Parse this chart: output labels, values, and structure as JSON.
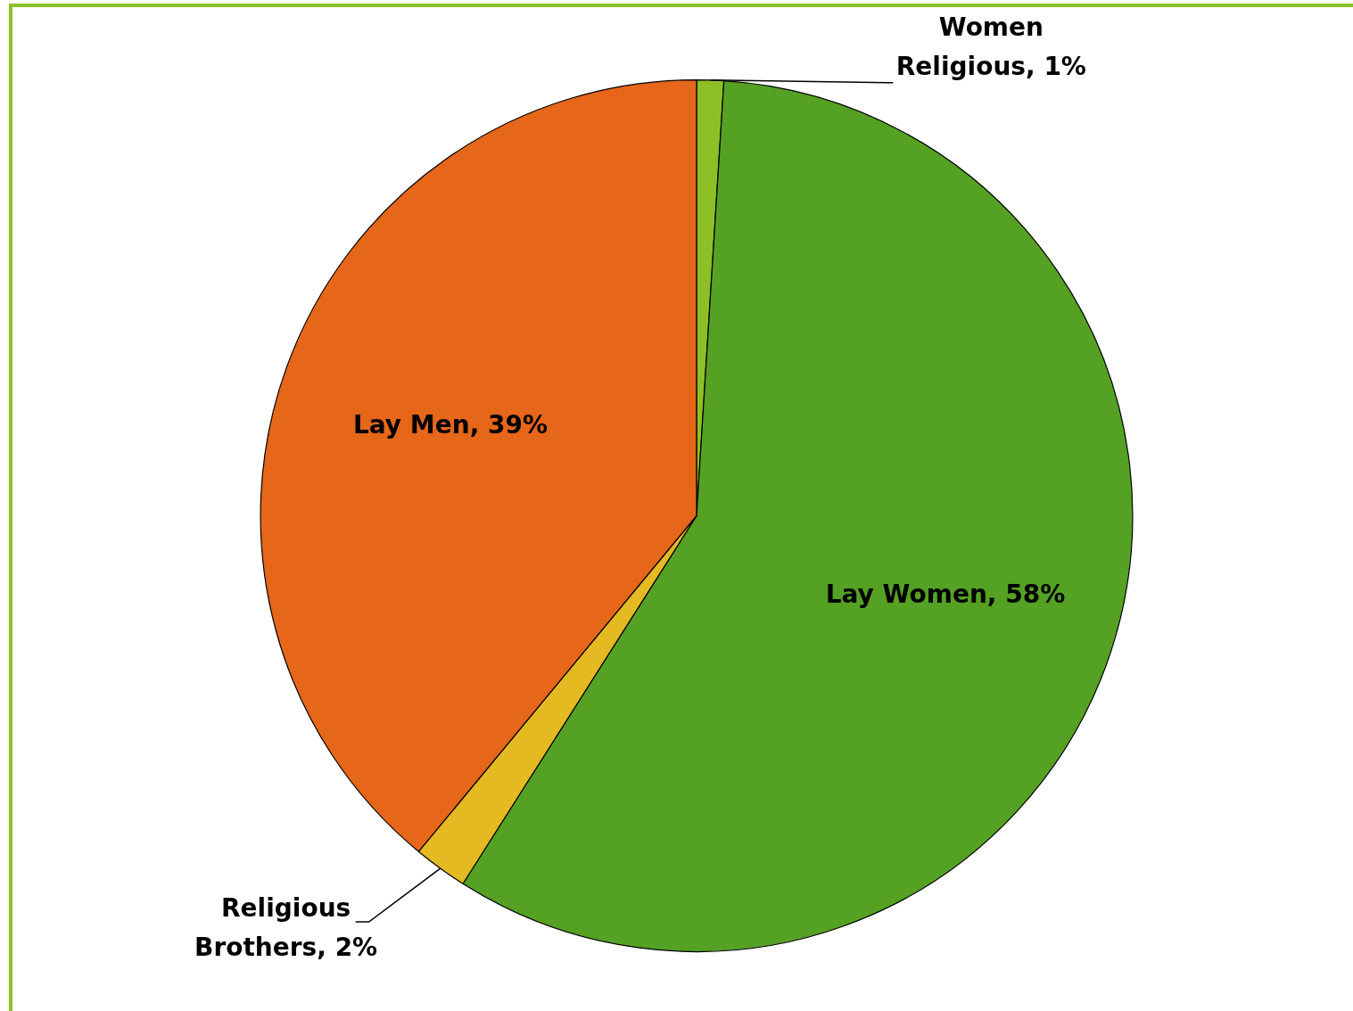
{
  "chart_data": {
    "type": "pie",
    "categories": [
      "Women Religious",
      "Lay Women",
      "Religious Brothers",
      "Lay Men"
    ],
    "values": [
      1,
      58,
      2,
      39
    ],
    "colors": [
      "#8dc026",
      "#55a124",
      "#e4b921",
      "#e6661a"
    ],
    "value_labels": [
      "1%",
      "58%",
      "2%",
      "39%"
    ],
    "legend": false
  }
}
